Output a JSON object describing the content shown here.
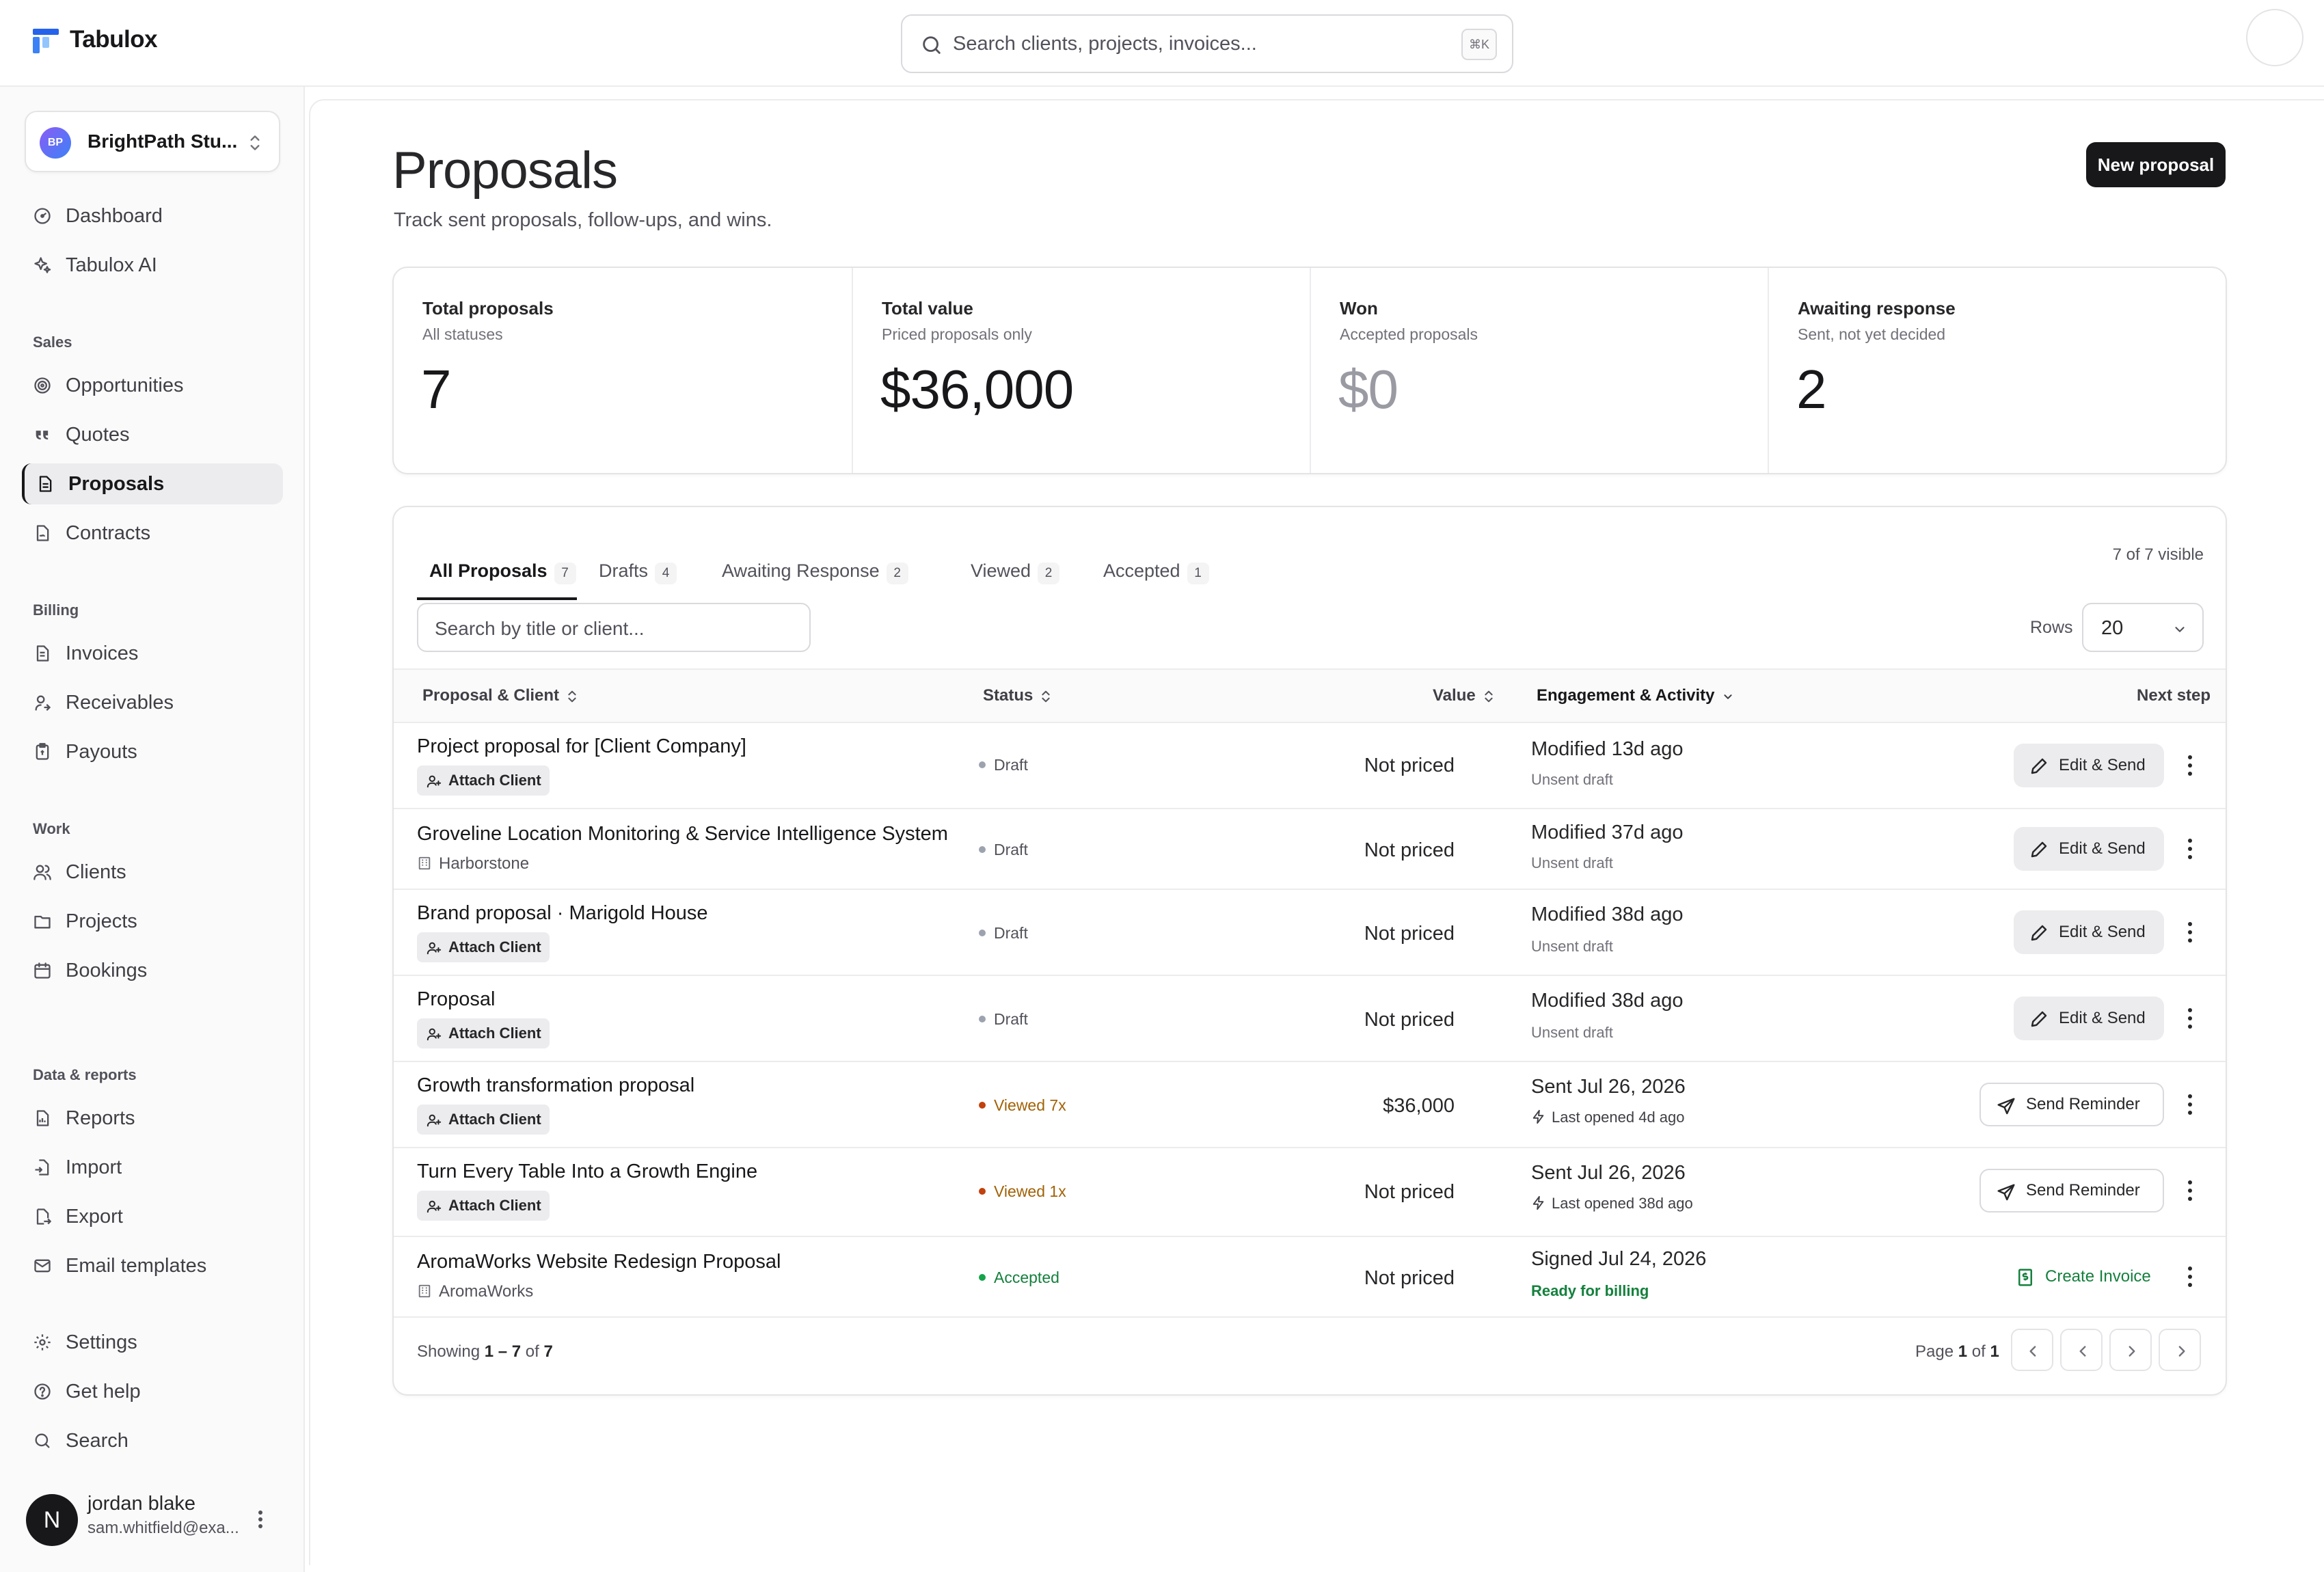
{
  "app": {
    "name": "Tabulox"
  },
  "search": {
    "placeholder": "Search clients, projects, invoices...",
    "shortcut": "⌘K"
  },
  "workspace": {
    "initials": "BP",
    "name": "BrightPath Stu..."
  },
  "sidebar": {
    "top": [
      {
        "label": "Dashboard",
        "icon": "dashboard-icon"
      },
      {
        "label": "Tabulox AI",
        "icon": "sparkles-icon"
      }
    ],
    "sections": [
      {
        "title": "Sales",
        "items": [
          {
            "label": "Opportunities",
            "icon": "target-icon"
          },
          {
            "label": "Quotes",
            "icon": "quote-icon"
          },
          {
            "label": "Proposals",
            "icon": "file-text-icon",
            "active": true
          },
          {
            "label": "Contracts",
            "icon": "file-signature-icon"
          }
        ]
      },
      {
        "title": "Billing",
        "items": [
          {
            "label": "Invoices",
            "icon": "invoice-icon"
          },
          {
            "label": "Receivables",
            "icon": "receivables-icon"
          },
          {
            "label": "Payouts",
            "icon": "payouts-icon"
          }
        ]
      },
      {
        "title": "Work",
        "items": [
          {
            "label": "Clients",
            "icon": "users-icon"
          },
          {
            "label": "Projects",
            "icon": "folder-icon"
          },
          {
            "label": "Bookings",
            "icon": "calendar-icon"
          }
        ]
      },
      {
        "title": "Data & reports",
        "items": [
          {
            "label": "Reports",
            "icon": "reports-icon"
          },
          {
            "label": "Import",
            "icon": "import-icon"
          },
          {
            "label": "Export",
            "icon": "export-icon"
          },
          {
            "label": "Email templates",
            "icon": "mail-icon"
          }
        ]
      }
    ],
    "bottom": [
      {
        "label": "Settings",
        "icon": "gear-icon"
      },
      {
        "label": "Get help",
        "icon": "help-icon"
      },
      {
        "label": "Search",
        "icon": "search-icon"
      }
    ]
  },
  "user": {
    "initial": "N",
    "name": "jordan blake",
    "email": "sam.whitfield@exa..."
  },
  "page": {
    "title": "Proposals",
    "subtitle": "Track sent proposals, follow-ups, and wins.",
    "new_button": "New proposal"
  },
  "stats": [
    {
      "label": "Total proposals",
      "sub": "All statuses",
      "value": "7"
    },
    {
      "label": "Total value",
      "sub": "Priced proposals only",
      "value": "$36,000"
    },
    {
      "label": "Won",
      "sub": "Accepted proposals",
      "value": "$0",
      "muted": true
    },
    {
      "label": "Awaiting response",
      "sub": "Sent, not yet decided",
      "value": "2"
    }
  ],
  "tabs": [
    {
      "label": "All Proposals",
      "count": "7",
      "active": true
    },
    {
      "label": "Drafts",
      "count": "4"
    },
    {
      "label": "Awaiting Response",
      "count": "2"
    },
    {
      "label": "Viewed",
      "count": "2"
    },
    {
      "label": "Accepted",
      "count": "1"
    }
  ],
  "visible_count": "7 of 7 visible",
  "filter": {
    "placeholder": "Search by title or client..."
  },
  "rows_select": {
    "label": "Rows",
    "value": "20"
  },
  "columns": {
    "proposal": "Proposal & Client",
    "status": "Status",
    "value": "Value",
    "engagement": "Engagement & Activity",
    "next": "Next step"
  },
  "table": [
    {
      "title": "Project proposal for [Client Company]",
      "client_kind": "attach",
      "client": "Attach Client",
      "status": "Draft",
      "status_kind": "draft",
      "value": "Not priced",
      "eng": "Modified 13d ago",
      "eng_sub": "Unsent draft",
      "eng_sub_kind": "plain",
      "action": "Edit & Send",
      "action_kind": "edit"
    },
    {
      "title": "Groveline Location Monitoring & Service Intelligence System",
      "client_kind": "company",
      "client": "Harborstone",
      "status": "Draft",
      "status_kind": "draft",
      "value": "Not priced",
      "eng": "Modified 37d ago",
      "eng_sub": "Unsent draft",
      "eng_sub_kind": "plain",
      "action": "Edit & Send",
      "action_kind": "edit"
    },
    {
      "title": "Brand proposal · Marigold House",
      "client_kind": "attach",
      "client": "Attach Client",
      "status": "Draft",
      "status_kind": "draft",
      "value": "Not priced",
      "eng": "Modified 38d ago",
      "eng_sub": "Unsent draft",
      "eng_sub_kind": "plain",
      "action": "Edit & Send",
      "action_kind": "edit"
    },
    {
      "title": "Proposal",
      "client_kind": "attach",
      "client": "Attach Client",
      "status": "Draft",
      "status_kind": "draft",
      "value": "Not priced",
      "eng": "Modified 38d ago",
      "eng_sub": "Unsent draft",
      "eng_sub_kind": "plain",
      "action": "Edit & Send",
      "action_kind": "edit"
    },
    {
      "title": "Growth transformation proposal",
      "client_kind": "attach",
      "client": "Attach Client",
      "status": "Viewed 7x",
      "status_kind": "viewed",
      "value": "$36,000",
      "eng": "Sent Jul 26, 2026",
      "eng_sub": "Last opened 4d ago",
      "eng_sub_kind": "opened",
      "action": "Send Reminder",
      "action_kind": "remind"
    },
    {
      "title": "Turn Every Table Into a Growth Engine",
      "client_kind": "attach",
      "client": "Attach Client",
      "status": "Viewed 1x",
      "status_kind": "viewed",
      "value": "Not priced",
      "eng": "Sent Jul 26, 2026",
      "eng_sub": "Last opened 38d ago",
      "eng_sub_kind": "opened",
      "action": "Send Reminder",
      "action_kind": "remind"
    },
    {
      "title": "AromaWorks Website Redesign Proposal",
      "client_kind": "company",
      "client": "AromaWorks",
      "status": "Accepted",
      "status_kind": "accepted",
      "value": "Not priced",
      "eng": "Signed Jul 24, 2026",
      "eng_sub": "Ready for billing",
      "eng_sub_kind": "billing",
      "action": "Create Invoice",
      "action_kind": "invoice"
    }
  ],
  "footer": {
    "showing_prefix": "Showing",
    "range": "1 – 7",
    "of_word": "of",
    "total": "7",
    "page_prefix": "Page",
    "page": "1",
    "pages": "1"
  }
}
